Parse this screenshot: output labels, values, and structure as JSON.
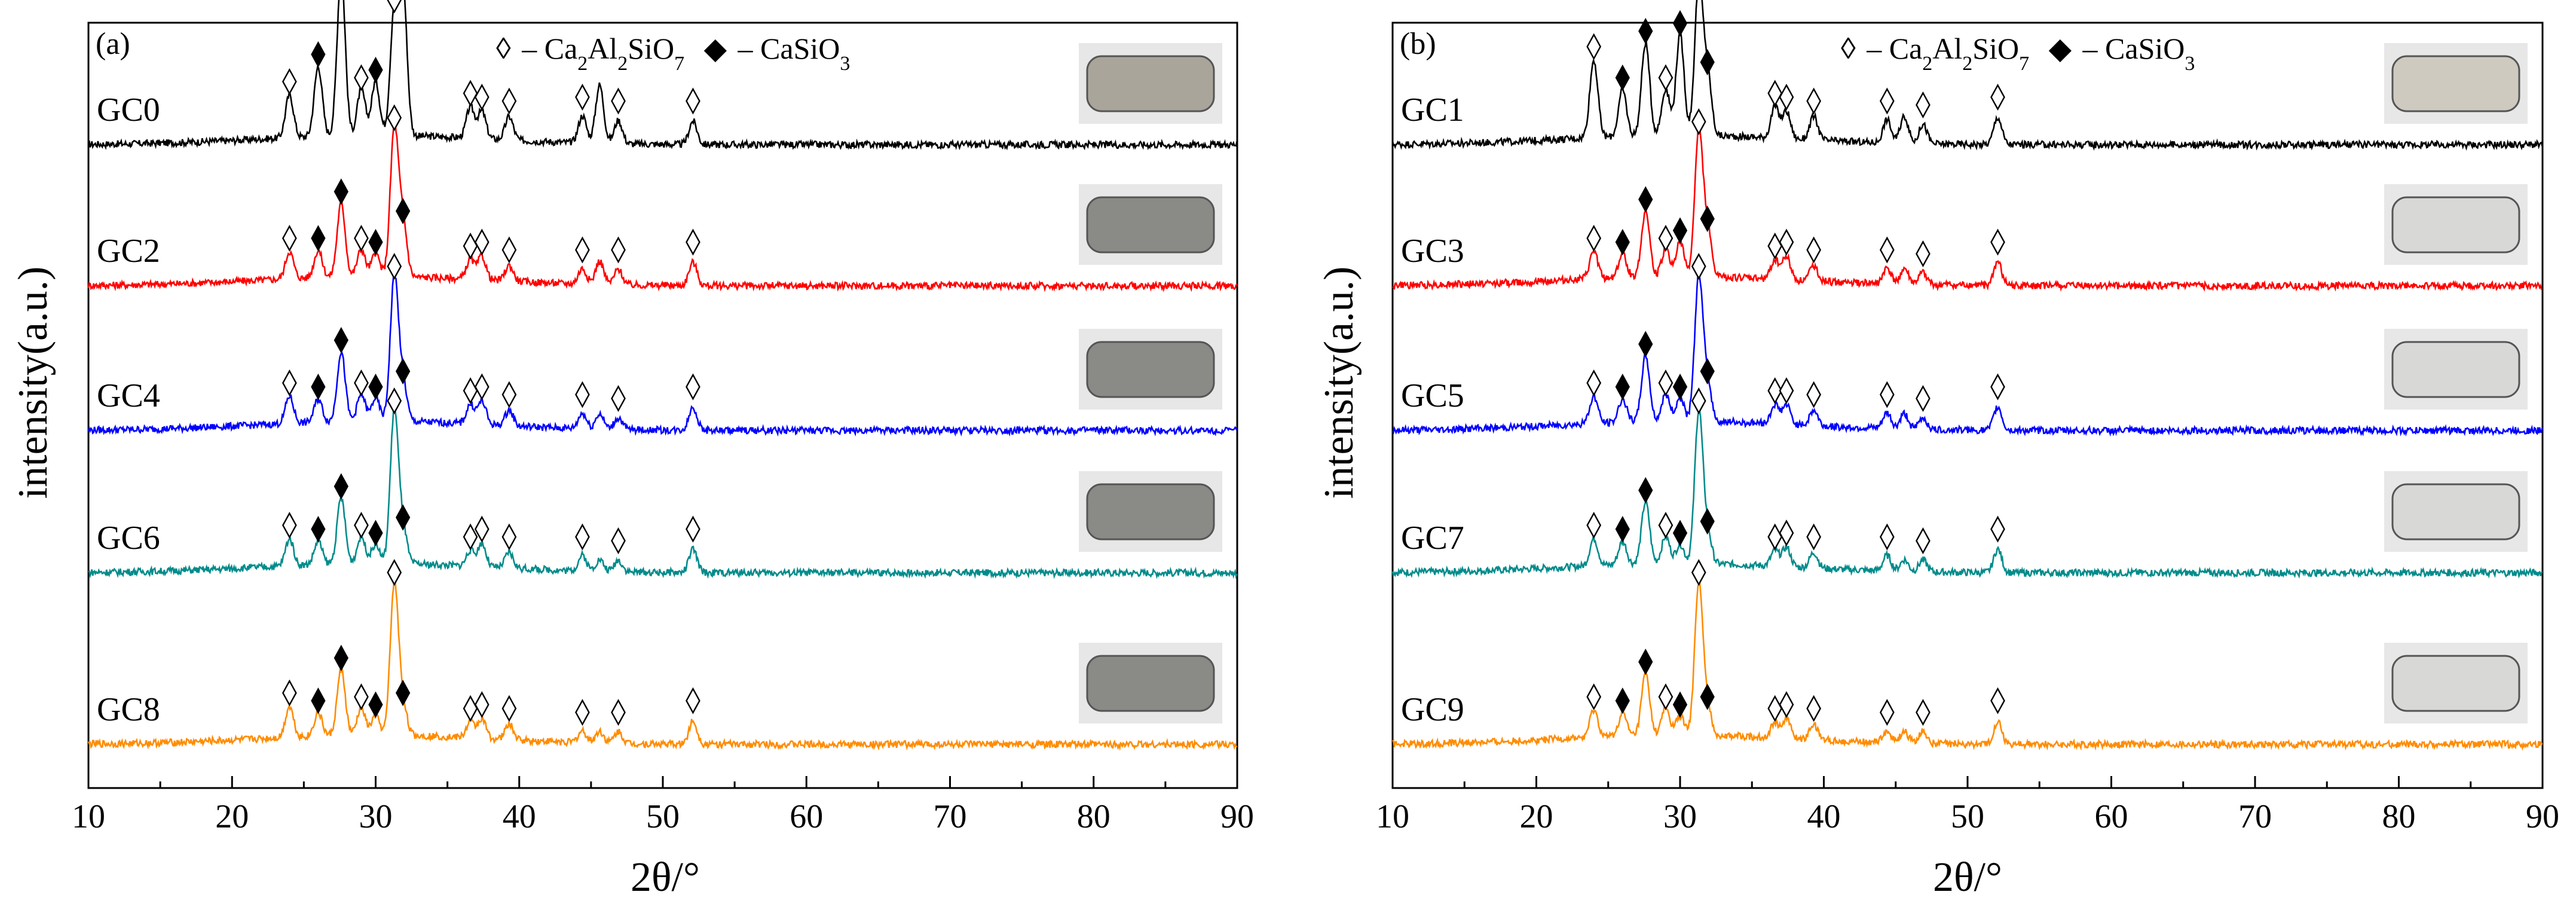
{
  "figure": {
    "ylabel": "intensity(a.u.)",
    "xlabel": "2θ/°"
  },
  "legend": {
    "open_symbol": "◊",
    "open_label_pre": "– Ca",
    "open_sub1": "2",
    "open_mid1": "Al",
    "open_sub2": "2",
    "open_mid2": "SiO",
    "open_sub3": "7",
    "filled_symbol": "◆",
    "filled_label_pre": "– CaSiO",
    "filled_sub": "3"
  },
  "chart_data": [
    {
      "type": "line",
      "panel_label": "(a)",
      "title": "",
      "xlabel": "2θ/°",
      "ylabel": "intensity(a.u.)",
      "xlim": [
        10,
        90
      ],
      "xticks": [
        10,
        20,
        30,
        40,
        50,
        60,
        70,
        80,
        90
      ],
      "tick_labels": [
        "10",
        "20",
        "30",
        "40",
        "50",
        "60",
        "70",
        "80",
        "90"
      ],
      "series": [
        {
          "name": "GC0",
          "color": "#000000",
          "baseline": 0.0,
          "peaks": [
            [
              24.0,
              0.55
            ],
            [
              26.0,
              0.9
            ],
            [
              27.6,
              2.1
            ],
            [
              29.0,
              0.6
            ],
            [
              30.0,
              0.7
            ],
            [
              31.3,
              1.6
            ],
            [
              31.9,
              1.9
            ],
            [
              36.6,
              0.4
            ],
            [
              37.4,
              0.35
            ],
            [
              39.3,
              0.3
            ],
            [
              44.4,
              0.35
            ],
            [
              45.6,
              0.75
            ],
            [
              46.9,
              0.3
            ],
            [
              52.1,
              0.3
            ]
          ]
        },
        {
          "name": "GC2",
          "color": "#ff0000",
          "baseline": 1.0,
          "peaks": [
            [
              24.0,
              0.35
            ],
            [
              26.0,
              0.35
            ],
            [
              27.6,
              0.95
            ],
            [
              29.0,
              0.35
            ],
            [
              30.0,
              0.3
            ],
            [
              31.3,
              1.9
            ],
            [
              31.9,
              0.7
            ],
            [
              36.6,
              0.25
            ],
            [
              37.4,
              0.3
            ],
            [
              39.3,
              0.2
            ],
            [
              44.4,
              0.2
            ],
            [
              45.6,
              0.3
            ],
            [
              46.9,
              0.2
            ],
            [
              52.1,
              0.3
            ]
          ]
        },
        {
          "name": "GC4",
          "color": "#0000ff",
          "baseline": 2.0,
          "peaks": [
            [
              24.0,
              0.35
            ],
            [
              26.0,
              0.3
            ],
            [
              27.6,
              0.9
            ],
            [
              29.0,
              0.35
            ],
            [
              30.0,
              0.3
            ],
            [
              31.3,
              1.85
            ],
            [
              31.9,
              0.5
            ],
            [
              36.6,
              0.25
            ],
            [
              37.4,
              0.3
            ],
            [
              39.3,
              0.2
            ],
            [
              44.4,
              0.2
            ],
            [
              45.6,
              0.2
            ],
            [
              46.9,
              0.15
            ],
            [
              52.1,
              0.3
            ]
          ]
        },
        {
          "name": "GC6",
          "color": "#008b8b",
          "baseline": 3.0,
          "peaks": [
            [
              24.0,
              0.35
            ],
            [
              26.0,
              0.3
            ],
            [
              27.6,
              0.85
            ],
            [
              29.0,
              0.35
            ],
            [
              30.0,
              0.25
            ],
            [
              31.3,
              1.95
            ],
            [
              31.9,
              0.45
            ],
            [
              36.6,
              0.2
            ],
            [
              37.4,
              0.3
            ],
            [
              39.3,
              0.2
            ],
            [
              44.4,
              0.2
            ],
            [
              45.6,
              0.15
            ],
            [
              46.9,
              0.15
            ],
            [
              52.1,
              0.3
            ]
          ]
        },
        {
          "name": "GC8",
          "color": "#ff8c00",
          "baseline": 4.0,
          "peaks": [
            [
              24.0,
              0.4
            ],
            [
              26.0,
              0.3
            ],
            [
              27.6,
              0.85
            ],
            [
              29.0,
              0.35
            ],
            [
              30.0,
              0.25
            ],
            [
              31.3,
              1.95
            ],
            [
              31.9,
              0.4
            ],
            [
              36.6,
              0.2
            ],
            [
              37.4,
              0.25
            ],
            [
              39.3,
              0.2
            ],
            [
              44.4,
              0.15
            ],
            [
              45.6,
              0.15
            ],
            [
              46.9,
              0.15
            ],
            [
              52.1,
              0.3
            ]
          ]
        }
      ],
      "open_markers_2theta": [
        24.0,
        29.0,
        31.3,
        36.6,
        37.4,
        39.3,
        44.4,
        46.9,
        52.1
      ],
      "filled_markers_2theta": [
        26.0,
        27.6,
        30.0,
        31.9
      ]
    },
    {
      "type": "line",
      "panel_label": "(b)",
      "title": "",
      "xlabel": "2θ/°",
      "ylabel": "intensity(a.u.)",
      "xlim": [
        10,
        90
      ],
      "xticks": [
        10,
        20,
        30,
        40,
        50,
        60,
        70,
        80,
        90
      ],
      "tick_labels": [
        "10",
        "20",
        "30",
        "40",
        "50",
        "60",
        "70",
        "80",
        "90"
      ],
      "series": [
        {
          "name": "GC1",
          "color": "#000000",
          "baseline": 0.0,
          "peaks": [
            [
              24.0,
              1.0
            ],
            [
              26.0,
              0.6
            ],
            [
              27.6,
              1.2
            ],
            [
              29.0,
              0.6
            ],
            [
              30.0,
              1.3
            ],
            [
              31.3,
              1.95
            ],
            [
              31.9,
              0.8
            ],
            [
              36.6,
              0.4
            ],
            [
              37.4,
              0.35
            ],
            [
              39.3,
              0.3
            ],
            [
              44.4,
              0.3
            ],
            [
              45.6,
              0.35
            ],
            [
              46.9,
              0.25
            ],
            [
              52.1,
              0.35
            ]
          ]
        },
        {
          "name": "GC3",
          "color": "#ff0000",
          "baseline": 1.0,
          "peaks": [
            [
              24.0,
              0.35
            ],
            [
              26.0,
              0.3
            ],
            [
              27.6,
              0.85
            ],
            [
              29.0,
              0.35
            ],
            [
              30.0,
              0.45
            ],
            [
              31.3,
              1.85
            ],
            [
              31.9,
              0.6
            ],
            [
              36.6,
              0.25
            ],
            [
              37.4,
              0.3
            ],
            [
              39.3,
              0.2
            ],
            [
              44.4,
              0.2
            ],
            [
              45.6,
              0.2
            ],
            [
              46.9,
              0.15
            ],
            [
              52.1,
              0.3
            ]
          ]
        },
        {
          "name": "GC5",
          "color": "#0000ff",
          "baseline": 2.0,
          "peaks": [
            [
              24.0,
              0.35
            ],
            [
              26.0,
              0.3
            ],
            [
              27.6,
              0.85
            ],
            [
              29.0,
              0.35
            ],
            [
              30.0,
              0.3
            ],
            [
              31.3,
              1.85
            ],
            [
              31.9,
              0.5
            ],
            [
              36.6,
              0.25
            ],
            [
              37.4,
              0.25
            ],
            [
              39.3,
              0.2
            ],
            [
              44.4,
              0.2
            ],
            [
              45.6,
              0.2
            ],
            [
              46.9,
              0.15
            ],
            [
              52.1,
              0.3
            ]
          ]
        },
        {
          "name": "GC7",
          "color": "#008b8b",
          "baseline": 3.0,
          "peaks": [
            [
              24.0,
              0.35
            ],
            [
              26.0,
              0.3
            ],
            [
              27.6,
              0.8
            ],
            [
              29.0,
              0.35
            ],
            [
              30.0,
              0.25
            ],
            [
              31.3,
              1.95
            ],
            [
              31.9,
              0.4
            ],
            [
              36.6,
              0.2
            ],
            [
              37.4,
              0.25
            ],
            [
              39.3,
              0.2
            ],
            [
              44.4,
              0.2
            ],
            [
              45.6,
              0.15
            ],
            [
              46.9,
              0.15
            ],
            [
              52.1,
              0.3
            ]
          ]
        },
        {
          "name": "GC9",
          "color": "#ff8c00",
          "baseline": 4.0,
          "peaks": [
            [
              24.0,
              0.35
            ],
            [
              26.0,
              0.3
            ],
            [
              27.6,
              0.8
            ],
            [
              29.0,
              0.35
            ],
            [
              30.0,
              0.25
            ],
            [
              31.3,
              1.95
            ],
            [
              31.9,
              0.35
            ],
            [
              36.6,
              0.2
            ],
            [
              37.4,
              0.25
            ],
            [
              39.3,
              0.2
            ],
            [
              44.4,
              0.15
            ],
            [
              45.6,
              0.15
            ],
            [
              46.9,
              0.15
            ],
            [
              52.1,
              0.3
            ]
          ]
        }
      ],
      "open_markers_2theta": [
        24.0,
        29.0,
        31.3,
        36.6,
        37.4,
        39.3,
        44.4,
        46.9,
        52.1
      ],
      "filled_markers_2theta": [
        26.0,
        27.6,
        30.0,
        31.9
      ]
    }
  ]
}
